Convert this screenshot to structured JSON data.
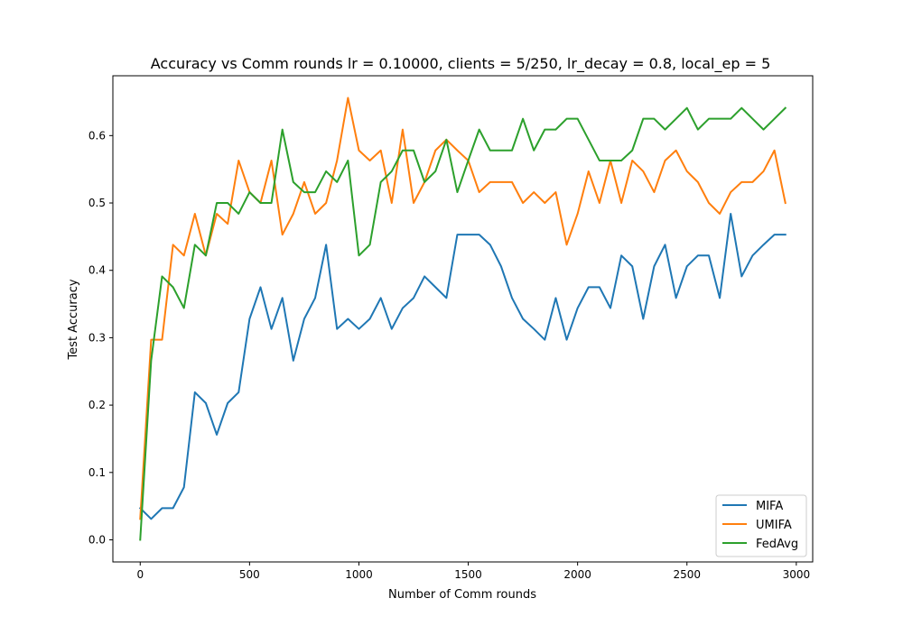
{
  "chart_data": {
    "type": "line",
    "title": "Accuracy vs Comm rounds lr = 0.10000, clients = 5/250, lr_decay = 0.8, local_ep = 5",
    "xlabel": "Number of Comm rounds",
    "ylabel": "Test Accuracy",
    "xlim": [
      -125,
      3075
    ],
    "ylim": [
      -0.0328,
      0.6888
    ],
    "xticks": [
      0,
      500,
      1000,
      1500,
      2000,
      2500,
      3000
    ],
    "xtick_labels": [
      "0",
      "500",
      "1000",
      "1500",
      "2000",
      "2500",
      "3000"
    ],
    "yticks": [
      0.0,
      0.1,
      0.2,
      0.3,
      0.4,
      0.5,
      0.6
    ],
    "ytick_labels": [
      "0.0",
      "0.1",
      "0.2",
      "0.3",
      "0.4",
      "0.5",
      "0.6"
    ],
    "grid": false,
    "legend_position": "lower-right",
    "x": [
      0,
      50,
      100,
      150,
      200,
      250,
      300,
      350,
      400,
      450,
      500,
      550,
      600,
      650,
      700,
      750,
      800,
      850,
      900,
      950,
      1000,
      1050,
      1100,
      1150,
      1200,
      1250,
      1300,
      1350,
      1400,
      1450,
      1500,
      1550,
      1600,
      1650,
      1700,
      1750,
      1800,
      1850,
      1900,
      1950,
      2000,
      2050,
      2100,
      2150,
      2200,
      2250,
      2300,
      2350,
      2400,
      2450,
      2500,
      2550,
      2600,
      2650,
      2700,
      2750,
      2800,
      2850,
      2900,
      2950
    ],
    "series": [
      {
        "name": "MIFA",
        "color": "#1f77b4",
        "values": [
          0.047,
          0.031,
          0.047,
          0.047,
          0.078,
          0.219,
          0.203,
          0.156,
          0.203,
          0.219,
          0.328,
          0.375,
          0.313,
          0.359,
          0.266,
          0.328,
          0.359,
          0.438,
          0.313,
          0.328,
          0.313,
          0.328,
          0.359,
          0.313,
          0.344,
          0.359,
          0.391,
          0.375,
          0.359,
          0.453,
          0.453,
          0.453,
          0.438,
          0.406,
          0.359,
          0.328,
          0.313,
          0.297,
          0.359,
          0.297,
          0.344,
          0.375,
          0.375,
          0.344,
          0.422,
          0.406,
          0.328,
          0.406,
          0.438,
          0.359,
          0.406,
          0.422,
          0.422,
          0.359,
          0.484,
          0.391,
          0.422,
          0.438,
          0.453,
          0.453
        ]
      },
      {
        "name": "UMIFA",
        "color": "#ff7f0e",
        "values": [
          0.031,
          0.297,
          0.297,
          0.438,
          0.422,
          0.484,
          0.422,
          0.484,
          0.469,
          0.563,
          0.516,
          0.5,
          0.563,
          0.453,
          0.484,
          0.531,
          0.484,
          0.5,
          0.563,
          0.656,
          0.578,
          0.563,
          0.578,
          0.5,
          0.609,
          0.5,
          0.531,
          0.578,
          0.594,
          0.578,
          0.563,
          0.516,
          0.531,
          0.531,
          0.531,
          0.5,
          0.516,
          0.5,
          0.516,
          0.438,
          0.484,
          0.547,
          0.5,
          0.563,
          0.5,
          0.563,
          0.547,
          0.516,
          0.563,
          0.578,
          0.547,
          0.531,
          0.5,
          0.484,
          0.516,
          0.531,
          0.531,
          0.547,
          0.578,
          0.5
        ]
      },
      {
        "name": "FedAvg",
        "color": "#2ca02c",
        "values": [
          0.0,
          0.266,
          0.391,
          0.375,
          0.344,
          0.438,
          0.422,
          0.5,
          0.5,
          0.484,
          0.516,
          0.5,
          0.5,
          0.609,
          0.531,
          0.516,
          0.516,
          0.547,
          0.531,
          0.563,
          0.422,
          0.438,
          0.531,
          0.547,
          0.578,
          0.578,
          0.531,
          0.547,
          0.594,
          0.516,
          0.563,
          0.609,
          0.578,
          0.578,
          0.578,
          0.625,
          0.578,
          0.609,
          0.609,
          0.625,
          0.625,
          0.594,
          0.563,
          0.563,
          0.563,
          0.578,
          0.625,
          0.625,
          0.609,
          0.625,
          0.641,
          0.609,
          0.625,
          0.625,
          0.625,
          0.641,
          0.625,
          0.609,
          0.625,
          0.641
        ]
      }
    ]
  }
}
